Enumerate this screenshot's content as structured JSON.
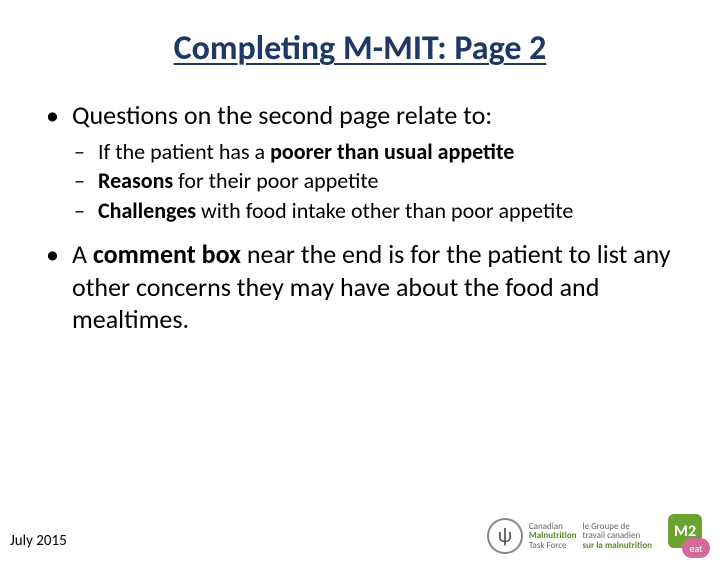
{
  "title": "Completing M-MIT: Page 2",
  "title_color": "#1f3864",
  "bullets": {
    "item1_pre": "Questions on the second page relate to:",
    "sub1_pre": "If the patient has a ",
    "sub1_bold": "poorer than usual appetite",
    "sub2_bold": "Reasons",
    "sub2_post": " for their poor appetite",
    "sub3_bold": "Challenges",
    "sub3_post": " with food intake other than poor appetite",
    "item2_pre": "A ",
    "item2_bold": "comment box",
    "item2_post": " near the end is for the patient to list any other concerns they may have about the food and mealtimes."
  },
  "footer_date": "July 2015",
  "logos": {
    "fork_glyph": "ψ",
    "cmtf_en_line1": "Canadian",
    "cmtf_en_line2": "Malnutrition",
    "cmtf_en_line3": "Task Force",
    "cmtf_fr_line1": "le Groupe de",
    "cmtf_fr_line2": "travail canadien",
    "cmtf_fr_line3": "sur la malnutrition",
    "m2_label": "M2",
    "eat_label": "eat"
  },
  "style": {
    "background": "#ffffff",
    "body_text_color": "#000000",
    "title_fontsize": 34,
    "level1_fontsize": 26,
    "level2_fontsize": 22,
    "logo_green": "#6aa32f",
    "logo_pink": "#d46a9b"
  }
}
